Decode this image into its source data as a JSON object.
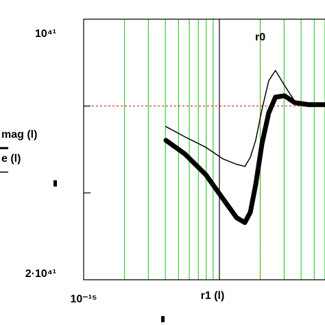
{
  "chart_data": {
    "type": "line",
    "xlabel": "r1 (l)",
    "x_log": true,
    "xlim": [
      1e-15,
      6e-14
    ],
    "xticks": [
      {
        "value": 1e-15,
        "label": "10⁻¹⁵"
      }
    ],
    "ylim": [
      -2e+41,
      1e+41
    ],
    "yticks": [
      {
        "value": 1e+41,
        "label": "10⁴¹"
      },
      {
        "value": -2e+41,
        "label": "2·10⁴¹"
      }
    ],
    "yminor": [
      0,
      -1e+41
    ],
    "grid": true,
    "grid_color": "#33cc33",
    "hline": {
      "value": 0,
      "color": "#dd0000"
    },
    "vmarker": {
      "value": 2e-14,
      "label": "r0",
      "color": "#999900"
    },
    "x": [
      4.04e-15,
      5.58e-15,
      7.93e-15,
      1.06e-14,
      1.34e-14,
      1.54e-14,
      1.69e-14,
      1.85e-14,
      2.06e-14,
      2.31e-14,
      2.59e-14,
      3.02e-14,
      3.59e-14,
      4.54e-14,
      6e-14
    ],
    "series": [
      {
        "name": "mag (l)",
        "color": "#000000",
        "width": 7,
        "values": [
          -3.95e+40,
          -5.53e+40,
          -7.89e+40,
          -1.065e+41,
          -1.286e+41,
          -1.342e+41,
          -1.223e+41,
          -9.08e+40,
          -4.34e+40,
          -7.9e+39,
          1.03e+40,
          1.18e+40,
          3.9e+39,
          1.6e+39,
          1.6e+39
        ]
      },
      {
        "name": "e (l)",
        "color": "#000000",
        "width": 1.5,
        "values": [
          -2.37e+40,
          -3.55e+40,
          -4.74e+40,
          -6.08e+40,
          -6.71e+40,
          -6.95e+40,
          -5.92e+40,
          -3.95e+40,
          -3.9e+39,
          2.92e+40,
          4.1e+40,
          2.37e+40,
          5.5e+39,
          2.4e+39,
          1.6e+39
        ]
      }
    ]
  }
}
